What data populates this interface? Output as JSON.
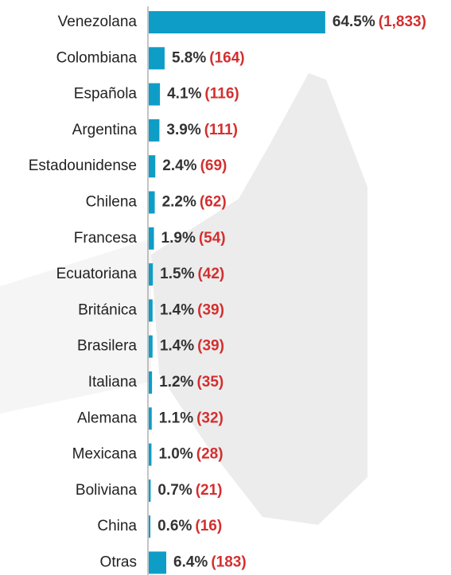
{
  "chart_data": {
    "type": "bar",
    "orientation": "horizontal",
    "color": "#0e9dc7",
    "categories": [
      "Venezolana",
      "Colombiana",
      "Española",
      "Argentina",
      "Estadounidense",
      "Chilena",
      "Francesa",
      "Ecuatoriana",
      "Británica",
      "Brasilera",
      "Italiana",
      "Alemana",
      "Mexicana",
      "Boliviana",
      "China",
      "Otras"
    ],
    "values": [
      64.5,
      5.8,
      4.1,
      3.9,
      2.4,
      2.2,
      1.9,
      1.5,
      1.4,
      1.4,
      1.2,
      1.1,
      1.0,
      0.7,
      0.6,
      6.4
    ],
    "value_labels": [
      "64.5%",
      "5.8%",
      "4.1%",
      "3.9%",
      "2.4%",
      "2.2%",
      "1.9%",
      "1.5%",
      "1.4%",
      "1.4%",
      "1.2%",
      "1.1%",
      "1.0%",
      "0.7%",
      "0.6%",
      "6.4%"
    ],
    "count_labels": [
      "(1,833)",
      "(164)",
      "(116)",
      "(111)",
      "(69)",
      "(62)",
      "(54)",
      "(42)",
      "(39)",
      "(39)",
      "(35)",
      "(32)",
      "(28)",
      "(21)",
      "(16)",
      "(183)"
    ]
  }
}
